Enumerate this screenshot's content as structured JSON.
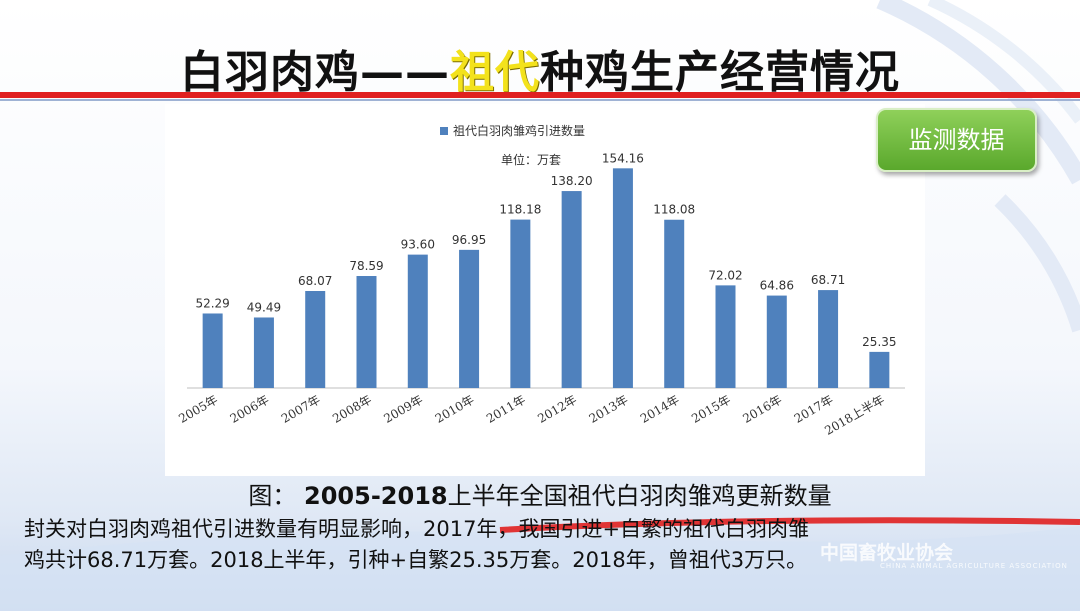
{
  "slide": {
    "title_prefix": "白羽肉鸡——",
    "title_highlight": "祖代",
    "title_suffix": "种鸡生产经营情况",
    "badge": "监测数据",
    "caption_prefix": "图：",
    "caption_bold": "2005-2018",
    "caption_rest": "上半年全国祖代白羽肉雏鸡更新数量",
    "bottom_line1": "封关对白羽肉鸡祖代引进数量有明显影响，2017年，我国引进+自繁的祖代白羽肉雏",
    "bottom_line2": "鸡共计68.71万套。2018上半年，引种+自繁25.35万套。2018年，曾祖代3万只。",
    "watermark_cn": "中国畜牧业协会",
    "watermark_en": "CHINA ANIMAL AGRICULTURE ASSOCIATION"
  },
  "chart_data": {
    "type": "bar",
    "legend": "祖代白羽肉雏鸡引进数量",
    "unit_label": "单位：万套",
    "categories": [
      "2005年",
      "2006年",
      "2007年",
      "2008年",
      "2009年",
      "2010年",
      "2011年",
      "2012年",
      "2013年",
      "2014年",
      "2015年",
      "2016年",
      "2017年",
      "2018上半年"
    ],
    "values": [
      52.29,
      49.49,
      68.07,
      78.59,
      93.6,
      96.95,
      118.18,
      138.2,
      154.16,
      118.08,
      72.02,
      64.86,
      68.71,
      25.35
    ],
    "value_labels": [
      "52.29",
      "49.49",
      "68.07",
      "78.59",
      "93.60",
      "96.95",
      "118.18",
      "138.20",
      "154.16",
      "118.08",
      "72.02",
      "64.86",
      "68.71",
      "25.35"
    ],
    "ylim": [
      0,
      160
    ],
    "bar_color": "#4f81bd",
    "axis_color": "#bfbfbf"
  }
}
